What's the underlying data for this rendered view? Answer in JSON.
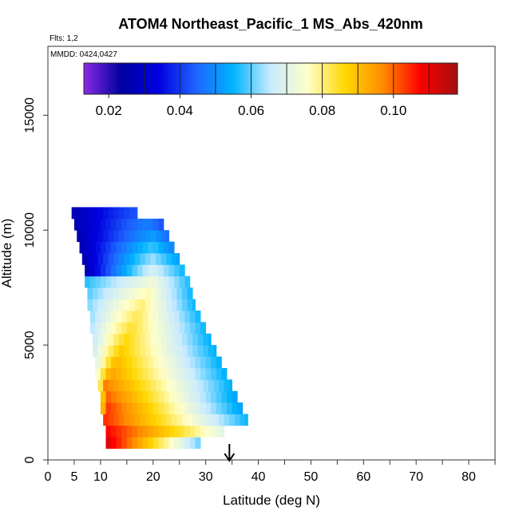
{
  "chart_data": {
    "type": "heatmap",
    "title": "ATOM4 Northeast_Pacific_1 MS_Abs_420nm",
    "flights_text": "Flts: 1,2",
    "mmdd_text": "MMDD: 0424,0427",
    "xlabel": "Latitude (deg N)",
    "ylabel": "Altitude (m)",
    "xlim": [
      0,
      85
    ],
    "ylim": [
      0,
      18000
    ],
    "x_ticks": [
      0,
      5,
      10,
      20,
      30,
      40,
      50,
      60,
      70,
      80
    ],
    "x_minor_ticks": [
      15,
      25,
      35,
      45,
      55,
      65,
      75,
      85
    ],
    "y_ticks": [
      0,
      5000,
      10000,
      15000
    ],
    "colorbar": {
      "min": 0.013,
      "max": 0.118,
      "ticks": [
        0.02,
        0.04,
        0.06,
        0.08,
        0.1
      ],
      "tick_labels": [
        "0.02",
        "0.04",
        "0.06",
        "0.08",
        "0.10"
      ],
      "divisions": [
        0.03,
        0.04,
        0.05,
        0.06,
        0.07,
        0.08,
        0.09,
        0.1,
        0.11
      ],
      "colors": [
        "#8a2be2",
        "#0000a0",
        "#0000e0",
        "#1e64ff",
        "#00b4ff",
        "#c8ebff",
        "#ffffc8",
        "#ffd700",
        "#ff8c00",
        "#ff0000",
        "#a01010"
      ]
    },
    "layer_height_m": 500,
    "layers": [
      {
        "alt": 500,
        "lat_start": 11,
        "lat_end": 29,
        "peak_lat": 11,
        "peak": 0.112,
        "edge": 0.06
      },
      {
        "alt": 1000,
        "lat_start": 11,
        "lat_end": 33.5,
        "peak_lat": 11,
        "peak": 0.108,
        "edge": 0.07
      },
      {
        "alt": 1500,
        "lat_start": 10.5,
        "lat_end": 38,
        "peak_lat": 11,
        "peak": 0.104,
        "edge": 0.055
      },
      {
        "alt": 2000,
        "lat_start": 10,
        "lat_end": 37,
        "peak_lat": 11,
        "peak": 0.104,
        "edge": 0.052
      },
      {
        "alt": 2500,
        "lat_start": 10,
        "lat_end": 36,
        "peak_lat": 11,
        "peak": 0.101,
        "edge": 0.052
      },
      {
        "alt": 3000,
        "lat_start": 9.5,
        "lat_end": 35,
        "peak_lat": 11,
        "peak": 0.098,
        "edge": 0.054
      },
      {
        "alt": 3500,
        "lat_start": 9,
        "lat_end": 34,
        "peak_lat": 12,
        "peak": 0.094,
        "edge": 0.054
      },
      {
        "alt": 4000,
        "lat_start": 9,
        "lat_end": 33,
        "peak_lat": 13,
        "peak": 0.091,
        "edge": 0.054
      },
      {
        "alt": 4500,
        "lat_start": 8.5,
        "lat_end": 32,
        "peak_lat": 14,
        "peak": 0.088,
        "edge": 0.054
      },
      {
        "alt": 5000,
        "lat_start": 8.5,
        "lat_end": 31,
        "peak_lat": 15,
        "peak": 0.086,
        "edge": 0.054
      },
      {
        "alt": 5500,
        "lat_start": 8,
        "lat_end": 30,
        "peak_lat": 16,
        "peak": 0.084,
        "edge": 0.055
      },
      {
        "alt": 6000,
        "lat_start": 8,
        "lat_end": 29,
        "peak_lat": 17,
        "peak": 0.082,
        "edge": 0.055
      },
      {
        "alt": 6500,
        "lat_start": 7.5,
        "lat_end": 28,
        "peak_lat": 18,
        "peak": 0.08,
        "edge": 0.055
      },
      {
        "alt": 7000,
        "lat_start": 7.5,
        "lat_end": 27.5,
        "peak_lat": 19,
        "peak": 0.077,
        "edge": 0.055
      },
      {
        "alt": 7500,
        "lat_start": 7,
        "lat_end": 27,
        "peak_lat": 20,
        "peak": 0.073,
        "edge": 0.056
      },
      {
        "alt": 8000,
        "lat_start": 7,
        "lat_end": 26,
        "peak_lat": 20,
        "peak": 0.068,
        "edge": 0.055
      },
      {
        "alt": 8500,
        "lat_start": 6.5,
        "lat_end": 25,
        "peak_lat": 20,
        "peak": 0.063,
        "edge": 0.052
      },
      {
        "alt": 9000,
        "lat_start": 6,
        "lat_end": 24,
        "peak_lat": 20,
        "peak": 0.058,
        "edge": 0.048
      },
      {
        "alt": 9500,
        "lat_start": 5.5,
        "lat_end": 23,
        "peak_lat": 20,
        "peak": 0.052,
        "edge": 0.045
      },
      {
        "alt": 10000,
        "lat_start": 5,
        "lat_end": 22,
        "peak_lat": 19,
        "peak": 0.048,
        "edge": 0.042
      },
      {
        "alt": 10500,
        "lat_start": 4.5,
        "lat_end": 17,
        "peak_lat": 17,
        "peak": 0.043,
        "edge": 0.043
      }
    ],
    "low_end": 0.026,
    "marker": {
      "lat": 34.5,
      "symbol": "arrow-down"
    }
  }
}
